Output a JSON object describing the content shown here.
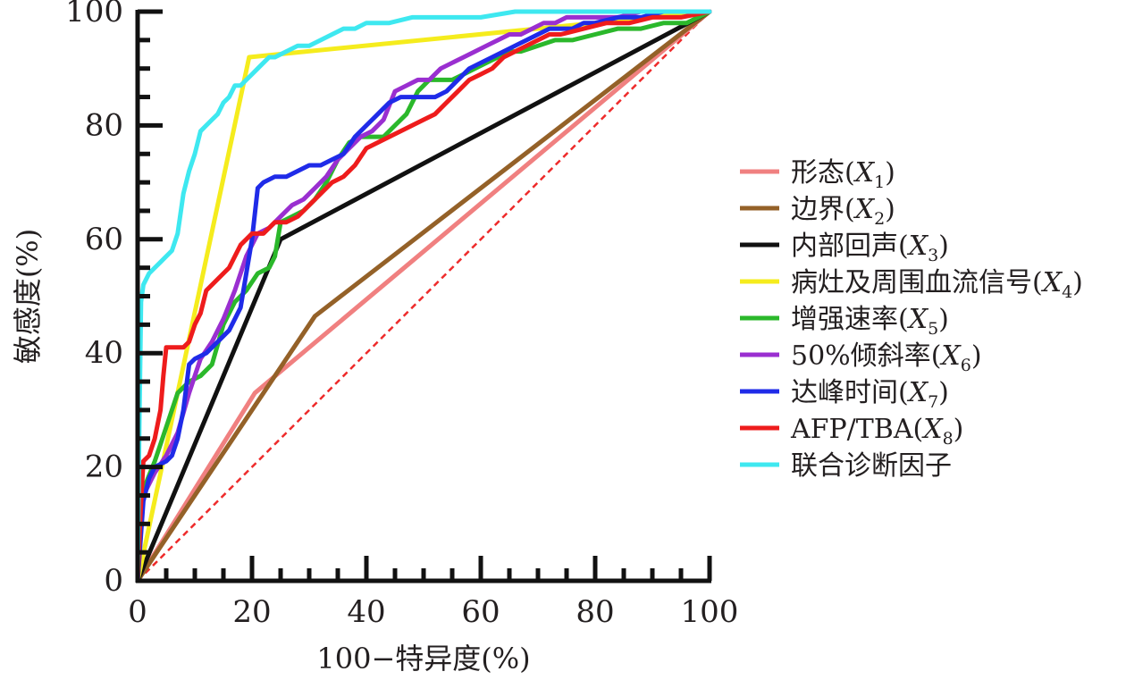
{
  "chart_data": {
    "type": "line",
    "title": "",
    "xlabel": "100−特异度(%)",
    "ylabel": "敏感度(%)",
    "xlim": [
      0,
      100
    ],
    "ylim": [
      0,
      100
    ],
    "x_ticks": [
      0,
      20,
      40,
      60,
      80,
      100
    ],
    "y_ticks": [
      0,
      20,
      40,
      60,
      80,
      100
    ],
    "grid": false,
    "legend_position": "right",
    "diagonal_reference": {
      "x": [
        0,
        100
      ],
      "y": [
        0,
        100
      ],
      "color": "#ee2b2b",
      "style": "dashed"
    },
    "series": [
      {
        "name": "形态",
        "subscript": "1",
        "color": "#f08080",
        "x": [
          0,
          20.5,
          100
        ],
        "y": [
          0,
          33,
          100
        ]
      },
      {
        "name": "边界",
        "subscript": "2",
        "color": "#946128",
        "x": [
          0,
          31,
          100
        ],
        "y": [
          0,
          46.5,
          100
        ]
      },
      {
        "name": "内部回声",
        "subscript": "3",
        "color": "#111111",
        "x": [
          0,
          25,
          100
        ],
        "y": [
          0,
          60,
          100
        ]
      },
      {
        "name": "病灶及周围血流信号",
        "subscript": "4",
        "color": "#f5ec1d",
        "x": [
          0,
          19.5,
          100
        ],
        "y": [
          0,
          92,
          100
        ]
      },
      {
        "name": "增强速率",
        "subscript": "5",
        "color": "#2bb82b",
        "x": [
          0,
          1,
          3,
          5,
          7,
          9,
          11,
          13,
          15,
          17,
          19,
          21,
          23,
          24,
          25,
          27,
          29,
          31,
          33,
          35,
          37,
          39,
          41,
          43,
          45,
          47,
          49,
          51,
          53,
          55,
          57,
          59,
          61,
          63,
          65,
          67,
          70,
          73,
          76,
          80,
          84,
          88,
          92,
          96,
          100
        ],
        "y": [
          0,
          16,
          21,
          27,
          33,
          35,
          36,
          38,
          45,
          49,
          51,
          54,
          55,
          57,
          63,
          64,
          65,
          67,
          70,
          74,
          77,
          78,
          78,
          78,
          80,
          82,
          86,
          88,
          88,
          88,
          89,
          90,
          91,
          92,
          93,
          93,
          94,
          95,
          95,
          96,
          97,
          97,
          98,
          98,
          100
        ]
      },
      {
        "name": "50%倾斜率",
        "subscript": "6",
        "color": "#9a2fd0",
        "x": [
          0,
          1,
          3,
          5,
          7,
          9,
          11,
          13,
          15,
          17,
          19,
          21,
          23,
          25,
          27,
          29,
          31,
          33,
          35,
          37,
          39,
          41,
          43,
          45,
          47,
          49,
          51,
          53,
          55,
          57,
          59,
          61,
          63,
          65,
          67,
          69,
          71,
          73,
          75,
          77,
          80,
          84,
          88,
          92,
          96,
          100
        ],
        "y": [
          0,
          15,
          19,
          22,
          26,
          33,
          39,
          42,
          46,
          51,
          57,
          61,
          62,
          64,
          66,
          67,
          69,
          71,
          74,
          76,
          78,
          79,
          81,
          86,
          87,
          88,
          88,
          90,
          91,
          92,
          93,
          94,
          95,
          96,
          96,
          97,
          98,
          98,
          99,
          99,
          99,
          99,
          100,
          100,
          100,
          100
        ]
      },
      {
        "name": "达峰时间",
        "subscript": "7",
        "color": "#1f2be8",
        "x": [
          0,
          1,
          2,
          3,
          5,
          6,
          7,
          8,
          9,
          10,
          12,
          14,
          16,
          18,
          20,
          21,
          22,
          24,
          26,
          28,
          30,
          32,
          34,
          36,
          38,
          40,
          42,
          44,
          46,
          48,
          50,
          52,
          54,
          56,
          58,
          60,
          62,
          64,
          66,
          68,
          70,
          72,
          74,
          76,
          78,
          80,
          84,
          88,
          92,
          96,
          100
        ],
        "y": [
          0,
          14,
          18,
          20,
          21,
          22,
          25,
          30,
          38,
          39,
          40,
          42,
          44,
          48,
          60,
          69,
          70,
          71,
          71,
          72,
          73,
          73,
          74,
          75,
          78,
          80,
          82,
          84,
          85,
          85,
          85,
          85,
          86,
          88,
          90,
          91,
          92,
          93,
          94,
          95,
          96,
          97,
          97,
          97,
          98,
          98,
          99,
          99,
          100,
          100,
          100
        ]
      },
      {
        "name": "AFP/TBA",
        "subscript": "8",
        "color": "#ee1c1c",
        "x": [
          0,
          0.5,
          1,
          2,
          3,
          4,
          4.5,
          5,
          8,
          9,
          10,
          11,
          12,
          14,
          16,
          17,
          18,
          19,
          20,
          22,
          24,
          26,
          28,
          30,
          32,
          34,
          36,
          38,
          40,
          42,
          44,
          46,
          48,
          50,
          52,
          54,
          56,
          58,
          60,
          62,
          64,
          66,
          68,
          70,
          72,
          74,
          78,
          82,
          86,
          90,
          95,
          100
        ],
        "y": [
          0,
          12,
          21,
          22,
          25,
          30,
          36,
          41,
          41,
          42,
          45,
          47,
          51,
          53,
          55,
          57,
          59,
          60,
          61,
          61,
          63,
          63,
          64,
          66,
          68,
          70,
          71,
          73,
          76,
          77,
          78,
          79,
          80,
          81,
          82,
          84,
          86,
          88,
          89,
          90,
          92,
          93,
          94,
          95,
          96,
          96,
          97,
          98,
          98,
          99,
          99,
          100
        ]
      },
      {
        "name": "联合诊断因子",
        "subscript": "",
        "color": "#3ee8f0",
        "x": [
          0,
          0.3,
          0.6,
          1,
          1.5,
          2,
          3,
          4,
          5,
          6,
          7,
          8,
          9,
          10,
          11,
          12,
          13,
          14,
          15,
          16,
          17,
          18,
          19,
          20,
          21,
          22,
          23,
          24,
          26,
          28,
          30,
          32,
          34,
          36,
          38,
          40,
          44,
          48,
          52,
          56,
          60,
          66,
          72,
          80,
          90,
          100
        ],
        "y": [
          0,
          27,
          49,
          52,
          53,
          54,
          55,
          56,
          57,
          58,
          61,
          68,
          72,
          75,
          79,
          80,
          81,
          82,
          84,
          85,
          87,
          87,
          88,
          89,
          90,
          91,
          92,
          92,
          93,
          94,
          94,
          95,
          96,
          97,
          97,
          98,
          98,
          99,
          99,
          99,
          99,
          100,
          100,
          100,
          100,
          100
        ]
      }
    ]
  }
}
